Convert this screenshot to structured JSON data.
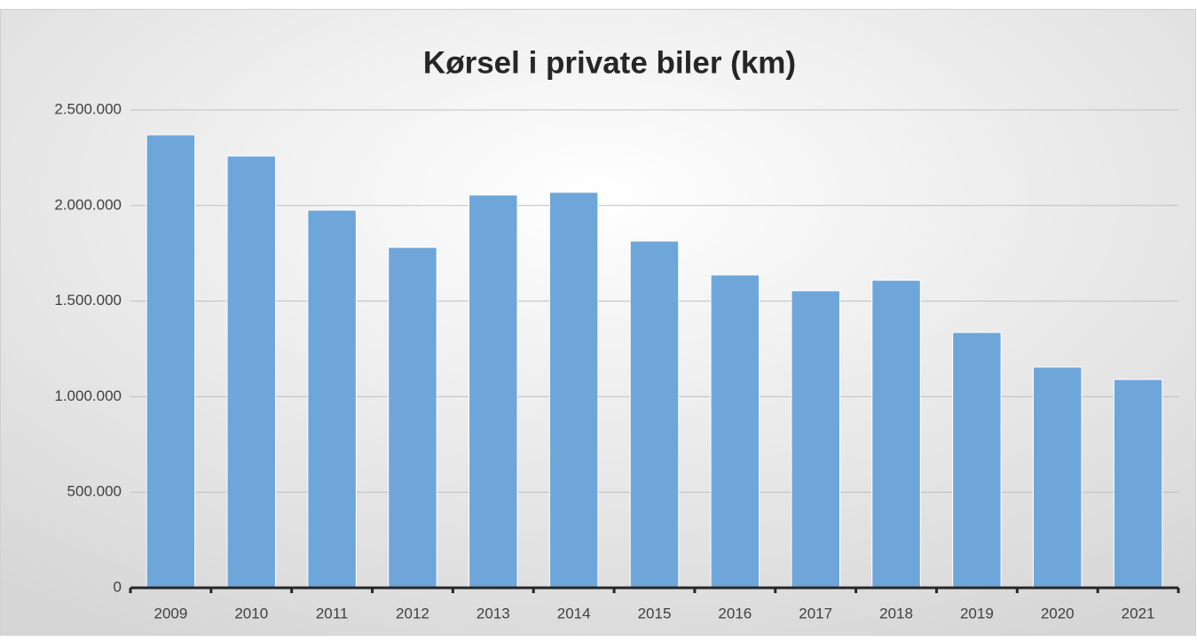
{
  "chart_data": {
    "type": "bar",
    "title": "Kørsel i private biler (km)",
    "categories": [
      "2009",
      "2010",
      "2011",
      "2012",
      "2013",
      "2014",
      "2015",
      "2016",
      "2017",
      "2018",
      "2019",
      "2020",
      "2021"
    ],
    "values": [
      2370000,
      2259000,
      1976000,
      1781000,
      2055000,
      2069000,
      1814000,
      1637000,
      1554000,
      1609000,
      1336000,
      1155000,
      1090000
    ],
    "color": "#6fa6d9",
    "ylim": [
      0,
      2500000
    ],
    "yticks": [
      0,
      {
        "value": 500000,
        "label": "500.000"
      },
      {
        "value": 1000000,
        "label": "1.000.000"
      },
      {
        "value": 1500000,
        "label": "1.500.000"
      },
      {
        "value": 2000000,
        "label": "2.000.000"
      },
      {
        "value": 2500000,
        "label": "2.500.000"
      }
    ],
    "grid": true
  }
}
